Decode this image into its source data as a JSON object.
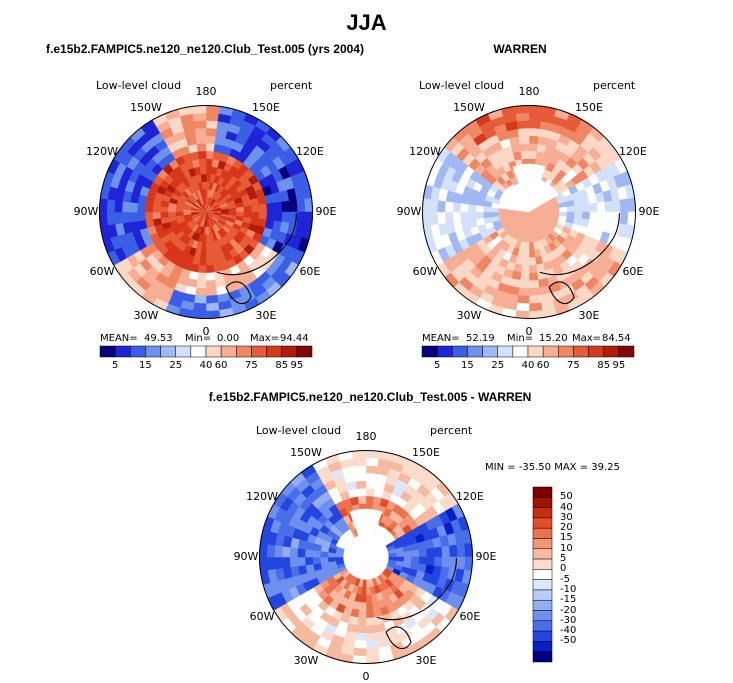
{
  "main_title": "JJA",
  "diff_title": "f.e15b2.FAMPIC5.ne120_ne120.Club_Test.005 - WARREN",
  "diff_range_text": "MIN = -35.50 MAX =  39.25",
  "colors": {
    "abs_palette": [
      "#08007f",
      "#1f25d6",
      "#3a5fe6",
      "#6d92ee",
      "#a0b8f4",
      "#d3e0fa",
      "#ffffff",
      "#fbd7c6",
      "#f6ae94",
      "#ef8664",
      "#e65b38",
      "#d8381a",
      "#b31b0c",
      "#7f0a02"
    ],
    "diff_palette": [
      "#00007f",
      "#0a1ec8",
      "#2446e0",
      "#4a6ee8",
      "#6f8fee",
      "#93adf2",
      "#b8ccf7",
      "#dce7fb",
      "#ffffff",
      "#fbdccc",
      "#f7b9a0",
      "#f29676",
      "#ec724d",
      "#e24e2a",
      "#cc2b10",
      "#9e1404",
      "#7a0000"
    ],
    "land_outline": "#000000"
  },
  "chart_data": [
    {
      "type": "heatmap",
      "projection": "north-polar-stereographic",
      "title": "f.e15b2.FAMPIC5.ne120_ne120.Club_Test.005 (yrs 2004)",
      "field": "Low-level cloud",
      "units": "percent",
      "lon_labels": [
        "180",
        "150E",
        "120E",
        "90E",
        "60E",
        "30E",
        "0",
        "30W",
        "60W",
        "90W",
        "120W",
        "150W"
      ],
      "stats": {
        "mean_label": "MEAN=",
        "mean": "49.53",
        "min_label": "Min=",
        "min": "0.00",
        "max_label": "Max=",
        "max": "94.44"
      },
      "colorbar_ticks": [
        "5",
        "15",
        "25",
        "40",
        "60",
        "75",
        "85",
        "95"
      ]
    },
    {
      "type": "heatmap",
      "projection": "north-polar-stereographic",
      "title": "WARREN",
      "field": "Low-level cloud",
      "units": "percent",
      "lon_labels": [
        "180",
        "150E",
        "120E",
        "90E",
        "60E",
        "30E",
        "0",
        "30W",
        "60W",
        "90W",
        "120W",
        "150W"
      ],
      "stats": {
        "mean_label": "MEAN=",
        "mean": "52.19",
        "min_label": "Min=",
        "min": "15.20",
        "max_label": "Max=",
        "max": "84.54"
      },
      "colorbar_ticks": [
        "5",
        "15",
        "25",
        "40",
        "60",
        "75",
        "85",
        "95"
      ]
    },
    {
      "type": "heatmap",
      "projection": "north-polar-stereographic",
      "title": "f.e15b2.FAMPIC5.ne120_ne120.Club_Test.005 - WARREN",
      "field": "Low-level cloud",
      "units": "percent",
      "lon_labels": [
        "180",
        "150E",
        "120E",
        "90E",
        "60E",
        "30E",
        "0",
        "30W",
        "60W",
        "90W",
        "120W",
        "150W"
      ],
      "stats": {
        "min": -35.5,
        "max": 39.25
      },
      "colorbar_ticks": [
        "50",
        "40",
        "30",
        "20",
        "15",
        "10",
        "5",
        "0",
        "-5",
        "-10",
        "-15",
        "-20",
        "-30",
        "-40",
        "-50"
      ]
    }
  ]
}
